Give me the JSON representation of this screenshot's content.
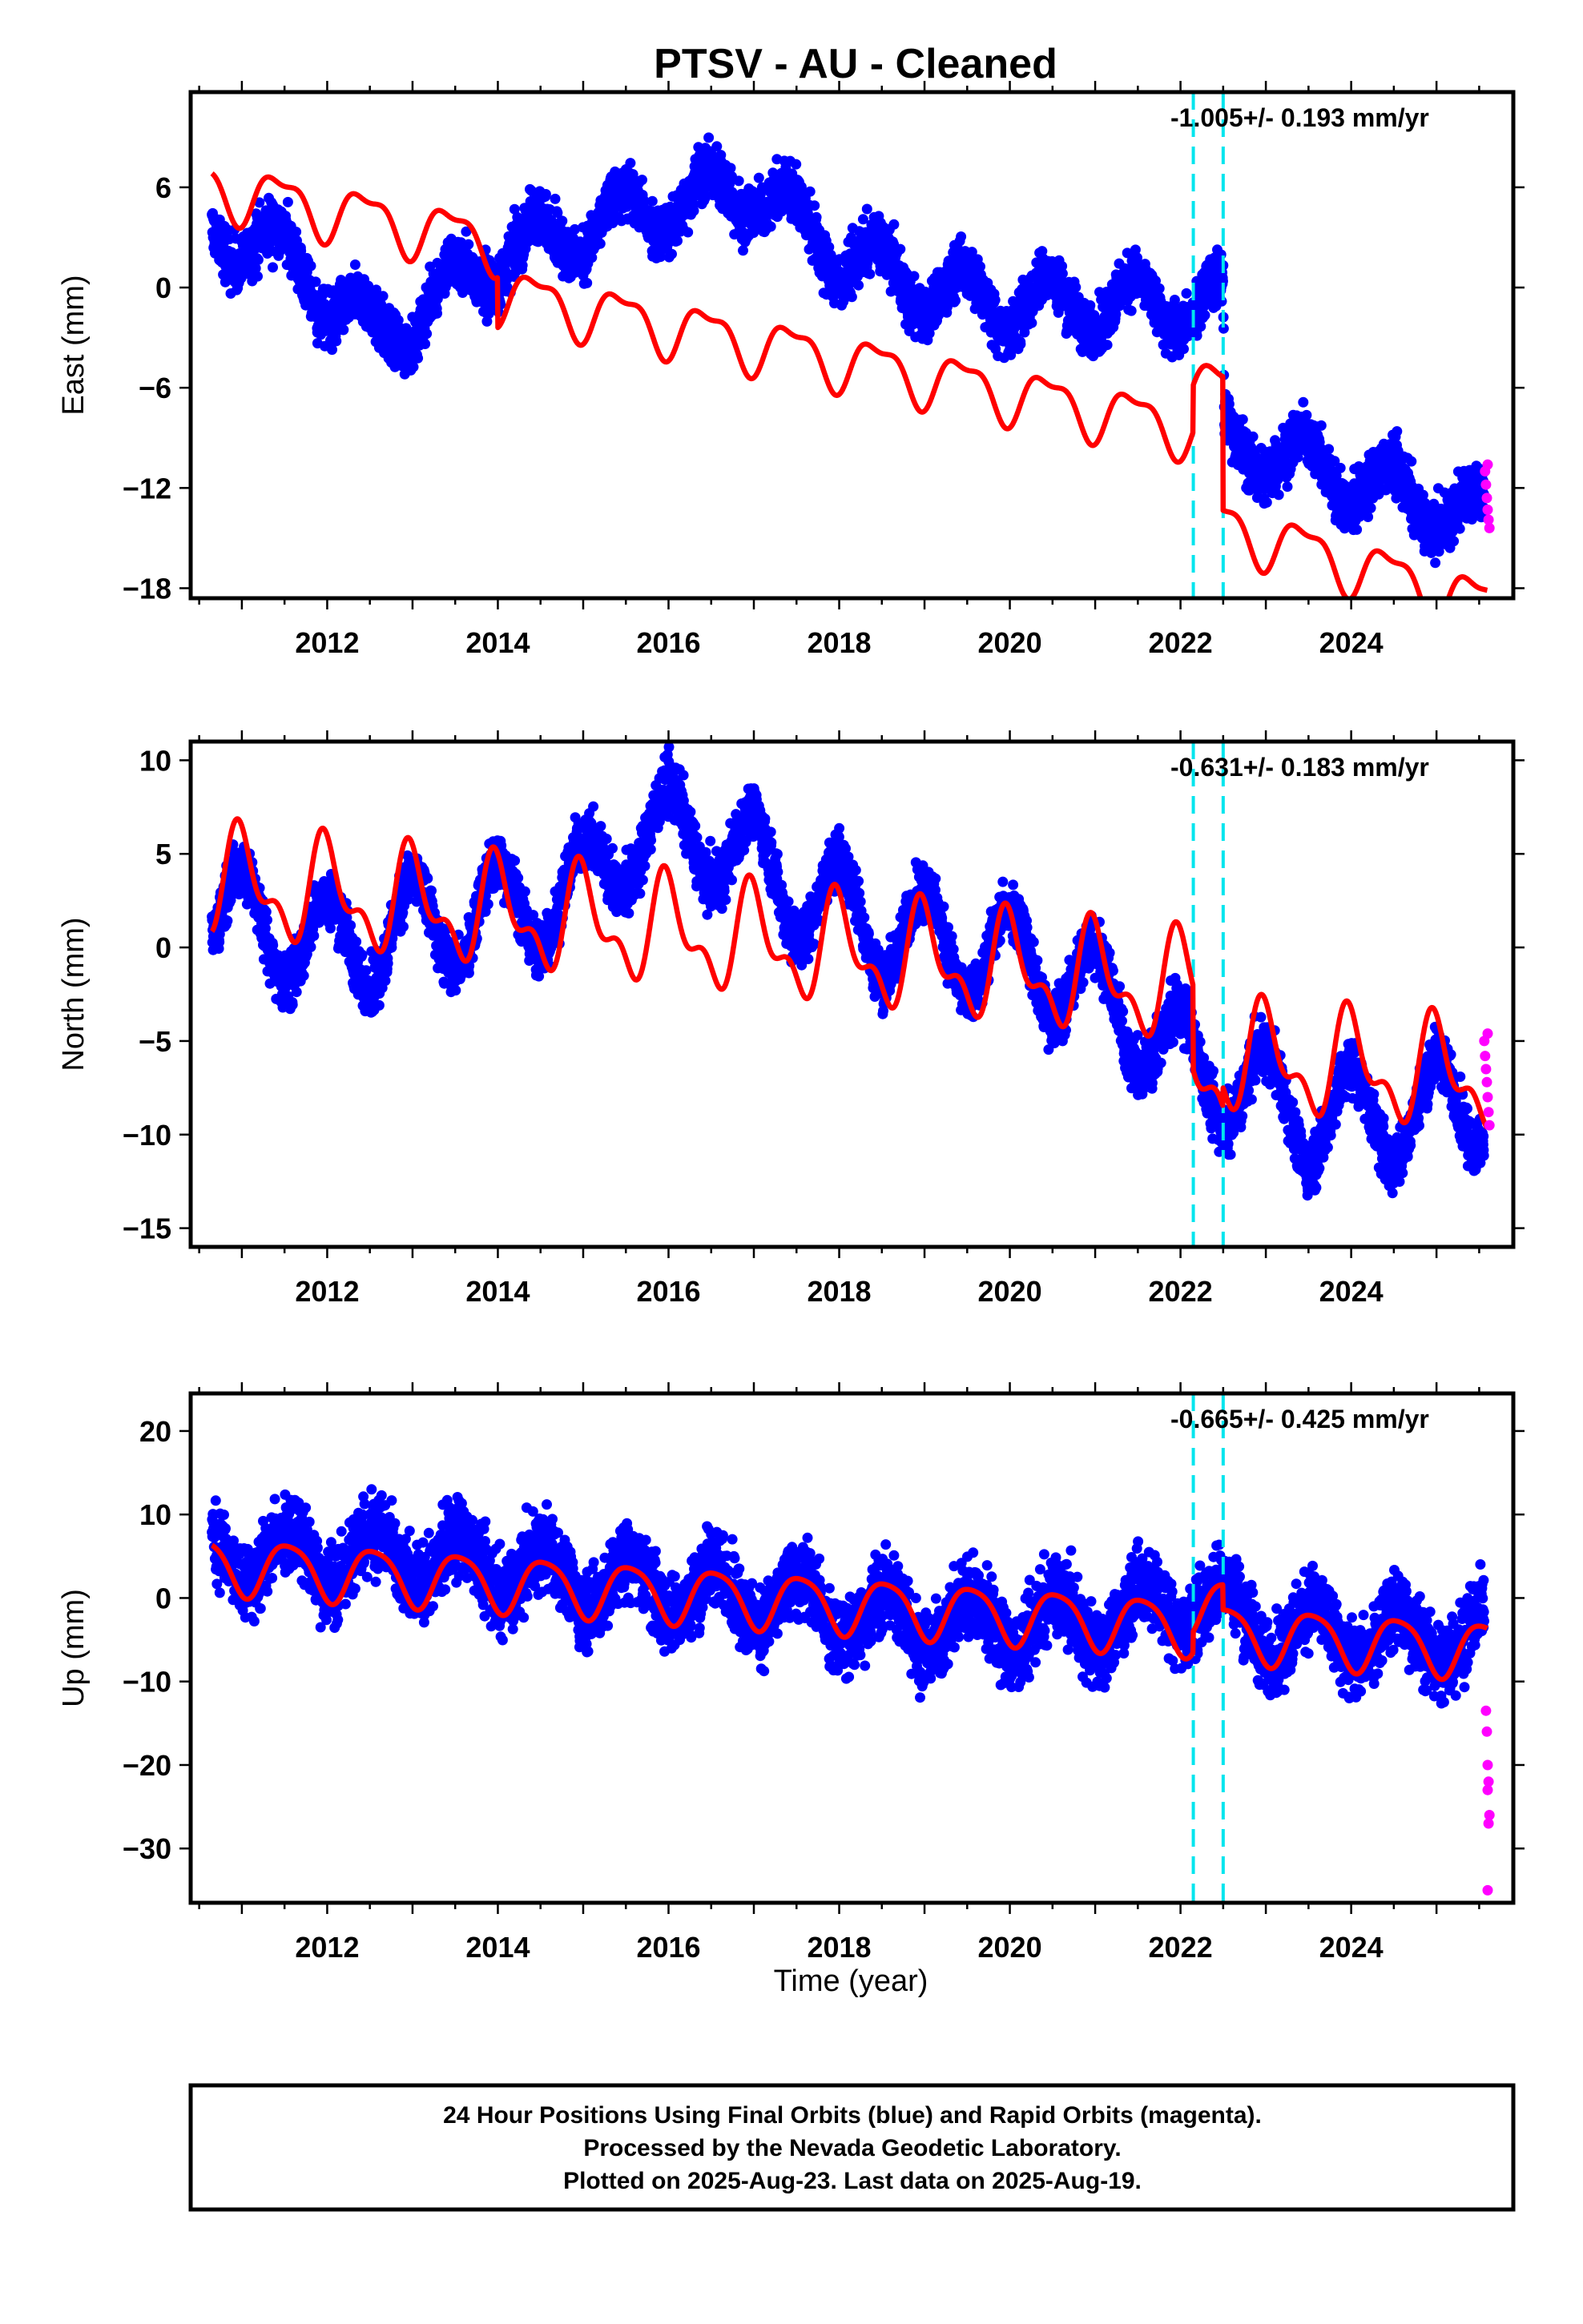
{
  "title": "PTSV  - AU - Cleaned",
  "x_axis_label": "Time (year)",
  "footer": {
    "line1": "24 Hour Positions Using Final Orbits (blue) and Rapid Orbits (magenta).",
    "line2": "Processed by the Nevada Geodetic Laboratory.",
    "line3": "Plotted on 2025-Aug-23. Last data on 2025-Aug-19."
  },
  "colors": {
    "final_orbits": "#0000ff",
    "rapid_orbits": "#ff00ff",
    "model": "#ff0000",
    "offsets": "#00e5ee",
    "frame": "#000000"
  },
  "chart_data": [
    {
      "type": "scatter",
      "component": "East",
      "ylabel": "East (mm)",
      "rate_label": "-1.005+/- 0.193 mm/yr",
      "xlim": [
        2010.4,
        2025.9
      ],
      "ylim": [
        -18.6,
        11.7
      ],
      "x_ticks": [
        2012,
        2014,
        2016,
        2018,
        2020,
        2022,
        2024
      ],
      "y_ticks": [
        6,
        0,
        -6,
        -12,
        -18
      ],
      "y_tick_labels": [
        "6",
        "0",
        "−6",
        "−12",
        "−18"
      ],
      "offset_epochs": [
        2022.15,
        2022.5
      ],
      "model": {
        "start": 2010.65,
        "end": 2025.6,
        "a0": 6.0,
        "rate_before": -1.0,
        "rate_after": -1.55,
        "a1": 1.55,
        "p1": 0.2,
        "a2": 0.6,
        "p2": 0.1,
        "steps": [
          {
            "t": 2014.0,
            "d": -3.0
          },
          {
            "t": 2022.15,
            "d": 2.8
          },
          {
            "t": 2022.5,
            "d": -8.0
          }
        ]
      },
      "data_trend": [
        [
          2010.7,
          3
        ],
        [
          2011.2,
          3
        ],
        [
          2012.6,
          -3
        ],
        [
          2013.5,
          0
        ],
        [
          2014.0,
          2
        ],
        [
          2016.0,
          5
        ],
        [
          2017.0,
          6
        ],
        [
          2018.0,
          2
        ],
        [
          2019.0,
          0
        ],
        [
          2020.0,
          -1
        ],
        [
          2022.0,
          -1
        ],
        [
          2022.5,
          -1
        ],
        [
          2022.51,
          -9
        ],
        [
          2025.6,
          -14
        ]
      ],
      "data_noise": 1.2,
      "data_seasonal_amp": 1.6,
      "rapid_points": [
        [
          2025.57,
          -11.0
        ],
        [
          2025.58,
          -11.8
        ],
        [
          2025.59,
          -12.6
        ],
        [
          2025.6,
          -13.3
        ],
        [
          2025.61,
          -13.9
        ],
        [
          2025.62,
          -14.4
        ],
        [
          2025.6,
          -10.6
        ]
      ]
    },
    {
      "type": "scatter",
      "component": "North",
      "ylabel": "North (mm)",
      "rate_label": "-0.631+/- 0.183 mm/yr",
      "xlim": [
        2010.4,
        2025.9
      ],
      "ylim": [
        -16.0,
        11.0
      ],
      "x_ticks": [
        2012,
        2014,
        2016,
        2018,
        2020,
        2022,
        2024
      ],
      "y_ticks": [
        10,
        5,
        0,
        -5,
        -10,
        -15
      ],
      "y_tick_labels": [
        "10",
        "5",
        "0",
        "−5",
        "−10",
        "−15"
      ],
      "offset_epochs": [
        2022.15,
        2022.5
      ],
      "model": {
        "start": 2010.65,
        "end": 2025.6,
        "a0": 3.5,
        "rate_before": -0.5,
        "rate_after": -0.35,
        "a1": 2.4,
        "p1": 0.75,
        "a2": 1.3,
        "p2": 0.3,
        "steps": [
          {
            "t": 2022.15,
            "d": -4.5
          },
          {
            "t": 2022.5,
            "d": 1.0
          }
        ]
      },
      "data_trend": [
        [
          2010.7,
          2
        ],
        [
          2012.0,
          0
        ],
        [
          2013.0,
          1
        ],
        [
          2014.0,
          2
        ],
        [
          2015.0,
          3
        ],
        [
          2015.5,
          6
        ],
        [
          2016.5,
          6
        ],
        [
          2017.5,
          3
        ],
        [
          2018.5,
          1
        ],
        [
          2019.5,
          0
        ],
        [
          2020.5,
          -1
        ],
        [
          2021.5,
          -4
        ],
        [
          2022.0,
          -6
        ],
        [
          2022.5,
          -7
        ],
        [
          2023.5,
          -9
        ],
        [
          2024.5,
          -9
        ],
        [
          2025.6,
          -8
        ]
      ],
      "data_noise": 1.1,
      "data_seasonal_amp": 2.6,
      "rapid_points": [
        [
          2025.56,
          -5.0
        ],
        [
          2025.57,
          -5.8
        ],
        [
          2025.58,
          -6.5
        ],
        [
          2025.59,
          -7.2
        ],
        [
          2025.6,
          -8.0
        ],
        [
          2025.61,
          -8.8
        ],
        [
          2025.62,
          -9.5
        ],
        [
          2025.6,
          -4.6
        ]
      ]
    },
    {
      "type": "scatter",
      "component": "Up",
      "ylabel": "Up (mm)",
      "rate_label": "-0.665+/- 0.425 mm/yr",
      "xlim": [
        2010.4,
        2025.9
      ],
      "ylim": [
        -36.5,
        24.5
      ],
      "x_ticks": [
        2012,
        2014,
        2016,
        2018,
        2020,
        2022,
        2024
      ],
      "y_ticks": [
        20,
        10,
        0,
        -10,
        -20,
        -30
      ],
      "y_tick_labels": [
        "20",
        "10",
        "0",
        "−10",
        "−20",
        "−30"
      ],
      "offset_epochs": [
        2022.15,
        2022.5
      ],
      "model": {
        "start": 2010.65,
        "end": 2025.6,
        "a0": 4.0,
        "rate_before": -0.65,
        "rate_after": -0.65,
        "a1": 3.3,
        "p1": 0.3,
        "a2": 0.6,
        "p2": 0.2,
        "steps": [
          {
            "t": 2022.15,
            "d": 2.5
          },
          {
            "t": 2022.5,
            "d": -3.0
          }
        ]
      },
      "data_trend": [
        [
          2010.7,
          5
        ],
        [
          2013.0,
          5
        ],
        [
          2015.0,
          2
        ],
        [
          2017.0,
          0
        ],
        [
          2019.0,
          -3
        ],
        [
          2021.0,
          -3
        ],
        [
          2022.2,
          0
        ],
        [
          2023.0,
          -4
        ],
        [
          2025.6,
          -5
        ]
      ],
      "data_noise": 3.4,
      "data_seasonal_amp": 3.3,
      "rapid_points": [
        [
          2025.58,
          -13.5
        ],
        [
          2025.59,
          -16.0
        ],
        [
          2025.6,
          -20.0
        ],
        [
          2025.61,
          -22.0
        ],
        [
          2025.6,
          -23.0
        ],
        [
          2025.62,
          -26.0
        ],
        [
          2025.61,
          -27.0
        ],
        [
          2025.6,
          -35.0
        ]
      ]
    }
  ]
}
